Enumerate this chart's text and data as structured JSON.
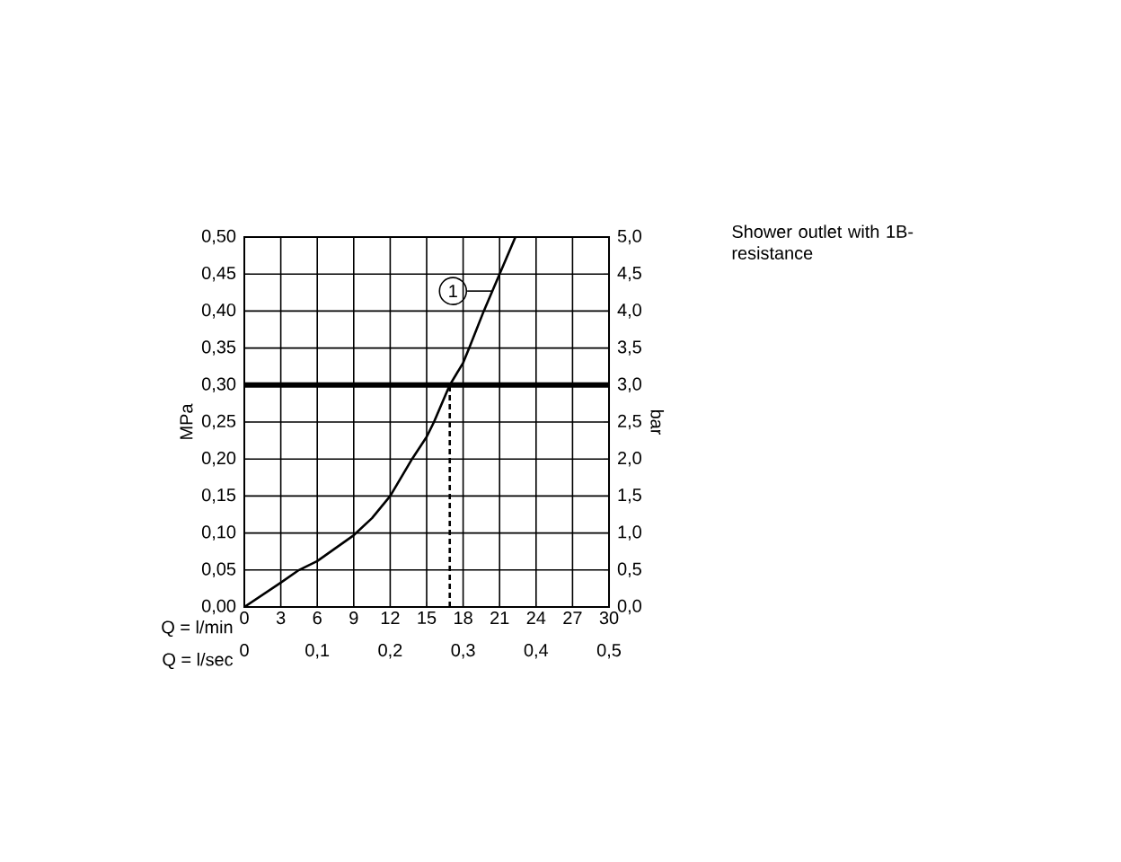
{
  "chart_data": {
    "type": "line",
    "xlabel": "Q = l/min",
    "x2label": "Q = l/sec",
    "ylabel": "MPa",
    "y2label": "bar",
    "xlim": [
      0,
      30
    ],
    "xticks": [
      0,
      3,
      6,
      9,
      12,
      15,
      18,
      21,
      24,
      27,
      30
    ],
    "x2lim": [
      0,
      0.5
    ],
    "x2ticks": [
      0,
      {
        "value": 0.1,
        "label": "0,1"
      },
      {
        "value": 0.2,
        "label": "0,2"
      },
      {
        "value": 0.3,
        "label": "0,3"
      },
      {
        "value": 0.4,
        "label": "0,4"
      },
      {
        "value": 0.5,
        "label": "0,5"
      }
    ],
    "ylim": [
      0,
      0.5
    ],
    "yticks": [
      {
        "value": 0,
        "label": "0,00"
      },
      {
        "value": 0.05,
        "label": "0,05"
      },
      {
        "value": 0.1,
        "label": "0,10"
      },
      {
        "value": 0.15,
        "label": "0,15"
      },
      {
        "value": 0.2,
        "label": "0,20"
      },
      {
        "value": 0.25,
        "label": "0,25"
      },
      {
        "value": 0.3,
        "label": "0,30"
      },
      {
        "value": 0.35,
        "label": "0,35"
      },
      {
        "value": 0.4,
        "label": "0,40"
      },
      {
        "value": 0.45,
        "label": "0,45"
      },
      {
        "value": 0.5,
        "label": "0,50"
      }
    ],
    "y2lim": [
      0,
      5
    ],
    "y2ticks": [
      {
        "value": 0,
        "label": "0,0"
      },
      {
        "value": 0.5,
        "label": "0,5"
      },
      {
        "value": 1,
        "label": "1,0"
      },
      {
        "value": 1.5,
        "label": "1,5"
      },
      {
        "value": 2,
        "label": "2,0"
      },
      {
        "value": 2.5,
        "label": "2,5"
      },
      {
        "value": 3,
        "label": "3,0"
      },
      {
        "value": 3.5,
        "label": "3,5"
      },
      {
        "value": 4,
        "label": "4,0"
      },
      {
        "value": 4.5,
        "label": "4,5"
      },
      {
        "value": 5,
        "label": "5,0"
      }
    ],
    "grid": true,
    "line_style": "solid",
    "series": [
      {
        "color": "#000000",
        "x": [
          0,
          3,
          4.5,
          6,
          9,
          10.5,
          12,
          13.8,
          15,
          15.6,
          16.9,
          18,
          18.5,
          19.7,
          20.4,
          21,
          22.3
        ],
        "values": [
          0,
          0.033,
          0.05,
          0.062,
          0.097,
          0.12,
          0.15,
          0.2,
          0.23,
          0.25,
          0.3,
          0.33,
          0.35,
          0.4,
          0.427,
          0.45,
          0.5
        ]
      },
      {
        "color": "#000000",
        "x": [
          16.9,
          16.9
        ],
        "values": [
          0,
          0.3
        ],
        "line_style": "dashed"
      }
    ],
    "ref_lines": [
      {
        "axis": "y",
        "value": 0.3,
        "color": "#000000"
      }
    ],
    "annotations": [
      {
        "text": "1",
        "x": 20.4,
        "y": 0.427
      },
      "Shower outlet with 1B-resistance"
    ]
  }
}
